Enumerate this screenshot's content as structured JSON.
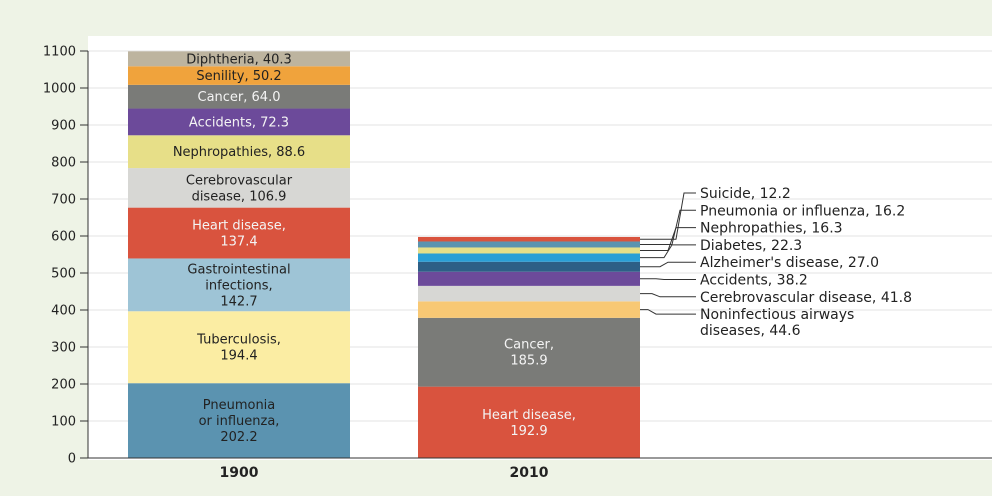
{
  "chart_data": {
    "type": "bar",
    "stacked": true,
    "categories": [
      "1900",
      "2010"
    ],
    "ylim": [
      0,
      1100
    ],
    "yticks": [
      0,
      100,
      200,
      300,
      400,
      500,
      600,
      700,
      800,
      900,
      1000,
      1100
    ],
    "grid": true,
    "stacks": [
      {
        "category": "1900",
        "segments": [
          {
            "label": "Pneumonia\nor influenza,\n202.2",
            "value": 202.2,
            "color": "#5b93b0",
            "text": "dark"
          },
          {
            "label": "Tuberculosis,\n194.4",
            "value": 194.4,
            "color": "#fbeda3",
            "text": "dark"
          },
          {
            "label": "Gastrointestinal\ninfections,\n142.7",
            "value": 142.7,
            "color": "#9ec4d6",
            "text": "dark"
          },
          {
            "label": "Heart disease,\n137.4",
            "value": 137.4,
            "color": "#d9533e",
            "text": "light"
          },
          {
            "label": "Cerebrovascular\ndisease, 106.9",
            "value": 106.9,
            "color": "#d7d7d4",
            "text": "dark"
          },
          {
            "label": "Nephropathies, 88.6",
            "value": 88.6,
            "color": "#e7df88",
            "text": "dark"
          },
          {
            "label": "Accidents, 72.3",
            "value": 72.3,
            "color": "#6c4a9a",
            "text": "light"
          },
          {
            "label": "Cancer, 64.0",
            "value": 64.0,
            "color": "#7a7b78",
            "text": "light"
          },
          {
            "label": "Senility, 50.2",
            "value": 50.2,
            "color": "#f0a33c",
            "text": "dark"
          },
          {
            "label": "Diphtheria, 40.3",
            "value": 40.3,
            "color": "#bdb49f",
            "text": "dark"
          }
        ]
      },
      {
        "category": "2010",
        "segments": [
          {
            "label": "Heart disease,\n192.9",
            "value": 192.9,
            "color": "#d9533e",
            "text": "light"
          },
          {
            "label": "Cancer,\n185.9",
            "value": 185.9,
            "color": "#7a7b78",
            "text": "light"
          },
          {
            "label": "Noninfectious airways\ndiseases, 44.6",
            "value": 44.6,
            "color": "#f8c874",
            "callout": true
          },
          {
            "label": "Cerebrovascular disease, 41.8",
            "value": 41.8,
            "color": "#d7d7d4",
            "callout": true
          },
          {
            "label": "Accidents, 38.2",
            "value": 38.2,
            "color": "#6c4a9a",
            "callout": true
          },
          {
            "label": "Alzheimer's disease, 27.0",
            "value": 27.0,
            "color": "#2d5f86",
            "callout": true
          },
          {
            "label": "Diabetes, 22.3",
            "value": 22.3,
            "color": "#2a9fd6",
            "callout": true
          },
          {
            "label": "Nephropathies, 16.3",
            "value": 16.3,
            "color": "#e7df88",
            "callout": true
          },
          {
            "label": "Pneumonia or influenza, 16.2",
            "value": 16.2,
            "color": "#5b93b0",
            "callout": true
          },
          {
            "label": "Suicide, 12.2",
            "value": 12.2,
            "color": "#d9533e",
            "callout": true
          }
        ]
      }
    ]
  }
}
